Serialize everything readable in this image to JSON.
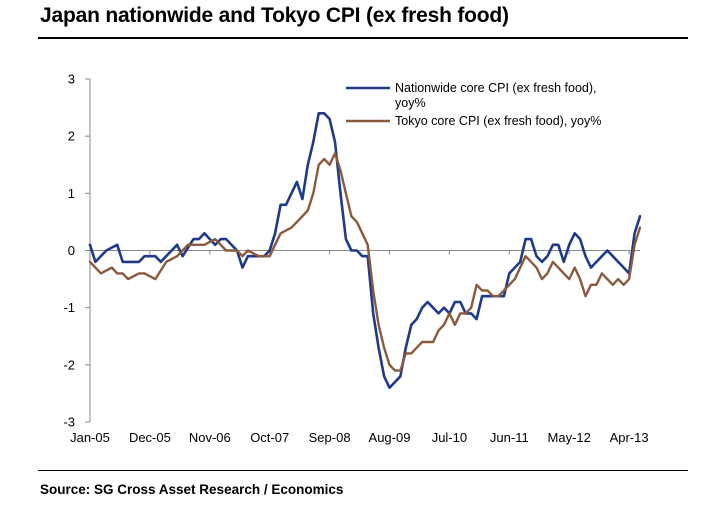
{
  "title": "Japan nationwide and Tokyo CPI (ex fresh food)",
  "source": "Source: SG Cross Asset Research / Economics",
  "colors": {
    "nationwide": "#1f3a8a",
    "tokyo": "#8b5a3c",
    "axis": "#888888"
  },
  "chart_data": {
    "type": "line",
    "title": "Japan nationwide and Tokyo CPI (ex fresh food)",
    "xlabel": "",
    "ylabel": "",
    "ylim": [
      -3,
      3
    ],
    "yticks": [
      "3",
      "2",
      "1",
      "0",
      "-1",
      "-2",
      "-3"
    ],
    "xtick_labels": [
      "Jan-05",
      "Dec-05",
      "Nov-06",
      "Oct-07",
      "Sep-08",
      "Aug-09",
      "Jul-10",
      "Jun-11",
      "May-12",
      "Apr-13"
    ],
    "xrange": [
      "Jan-05",
      "Jun-13"
    ],
    "grid": false,
    "legend_position": "top-right",
    "series": [
      {
        "name": "Nationwide core CPI (ex fresh food), yoy%",
        "name_lines": [
          "Nationwide core CPI (ex fresh food),",
          "yoy%"
        ],
        "color_key": "nationwide",
        "points": [
          [
            "Jan-05",
            0.1
          ],
          [
            "Feb-05",
            -0.2
          ],
          [
            "Apr-05",
            0.0
          ],
          [
            "Jun-05",
            0.1
          ],
          [
            "Jul-05",
            -0.2
          ],
          [
            "Oct-05",
            -0.2
          ],
          [
            "Nov-05",
            -0.1
          ],
          [
            "Dec-05",
            -0.1
          ],
          [
            "Jan-06",
            -0.1
          ],
          [
            "Feb-06",
            -0.2
          ],
          [
            "Mar-06",
            -0.1
          ],
          [
            "May-06",
            0.1
          ],
          [
            "Jun-06",
            -0.1
          ],
          [
            "Aug-06",
            0.2
          ],
          [
            "Sep-06",
            0.2
          ],
          [
            "Oct-06",
            0.3
          ],
          [
            "Nov-06",
            0.2
          ],
          [
            "Dec-06",
            0.1
          ],
          [
            "Jan-07",
            0.2
          ],
          [
            "Feb-07",
            0.2
          ],
          [
            "Apr-07",
            0.0
          ],
          [
            "May-07",
            -0.3
          ],
          [
            "Jun-07",
            -0.1
          ],
          [
            "Jul-07",
            -0.1
          ],
          [
            "Sep-07",
            -0.1
          ],
          [
            "Oct-07",
            0.0
          ],
          [
            "Nov-07",
            0.3
          ],
          [
            "Dec-07",
            0.8
          ],
          [
            "Jan-08",
            0.8
          ],
          [
            "Mar-08",
            1.2
          ],
          [
            "Apr-08",
            0.9
          ],
          [
            "May-08",
            1.5
          ],
          [
            "Jun-08",
            1.9
          ],
          [
            "Jul-08",
            2.4
          ],
          [
            "Aug-08",
            2.4
          ],
          [
            "Sep-08",
            2.3
          ],
          [
            "Oct-08",
            1.9
          ],
          [
            "Nov-08",
            1.0
          ],
          [
            "Dec-08",
            0.2
          ],
          [
            "Jan-09",
            0.0
          ],
          [
            "Feb-09",
            0.0
          ],
          [
            "Mar-09",
            -0.1
          ],
          [
            "Apr-09",
            -0.1
          ],
          [
            "May-09",
            -1.1
          ],
          [
            "Jun-09",
            -1.7
          ],
          [
            "Jul-09",
            -2.2
          ],
          [
            "Aug-09",
            -2.4
          ],
          [
            "Sep-09",
            -2.3
          ],
          [
            "Oct-09",
            -2.2
          ],
          [
            "Nov-09",
            -1.7
          ],
          [
            "Dec-09",
            -1.3
          ],
          [
            "Jan-10",
            -1.2
          ],
          [
            "Feb-10",
            -1.0
          ],
          [
            "Mar-10",
            -0.9
          ],
          [
            "Apr-10",
            -1.0
          ],
          [
            "May-10",
            -1.1
          ],
          [
            "Jun-10",
            -1.0
          ],
          [
            "Jul-10",
            -1.1
          ],
          [
            "Aug-10",
            -0.9
          ],
          [
            "Sep-10",
            -0.9
          ],
          [
            "Oct-10",
            -1.1
          ],
          [
            "Nov-10",
            -1.1
          ],
          [
            "Dec-10",
            -1.2
          ],
          [
            "Jan-11",
            -0.8
          ],
          [
            "Feb-11",
            -0.8
          ],
          [
            "Mar-11",
            -0.8
          ],
          [
            "Apr-11",
            -0.8
          ],
          [
            "May-11",
            -0.8
          ],
          [
            "Jun-11",
            -0.4
          ],
          [
            "Jul-11",
            -0.3
          ],
          [
            "Aug-11",
            -0.2
          ],
          [
            "Sep-11",
            0.2
          ],
          [
            "Oct-11",
            0.2
          ],
          [
            "Nov-11",
            -0.1
          ],
          [
            "Dec-11",
            -0.2
          ],
          [
            "Jan-12",
            -0.1
          ],
          [
            "Feb-12",
            0.1
          ],
          [
            "Mar-12",
            0.1
          ],
          [
            "Apr-12",
            -0.2
          ],
          [
            "May-12",
            0.1
          ],
          [
            "Jun-12",
            0.3
          ],
          [
            "Jul-12",
            0.2
          ],
          [
            "Aug-12",
            -0.1
          ],
          [
            "Sep-12",
            -0.3
          ],
          [
            "Oct-12",
            -0.2
          ],
          [
            "Nov-12",
            -0.1
          ],
          [
            "Dec-12",
            0.0
          ],
          [
            "Jan-13",
            -0.1
          ],
          [
            "Feb-13",
            -0.2
          ],
          [
            "Mar-13",
            -0.3
          ],
          [
            "Apr-13",
            -0.4
          ],
          [
            "May-13",
            0.3
          ],
          [
            "Jun-13",
            0.6
          ]
        ]
      },
      {
        "name": "Tokyo core CPI (ex fresh food), yoy%",
        "name_lines": [
          "Tokyo core CPI (ex fresh food), yoy%"
        ],
        "color_key": "tokyo",
        "points": [
          [
            "Jan-05",
            -0.2
          ],
          [
            "Feb-05",
            -0.3
          ],
          [
            "Mar-05",
            -0.4
          ],
          [
            "May-05",
            -0.3
          ],
          [
            "Jun-05",
            -0.4
          ],
          [
            "Jul-05",
            -0.4
          ],
          [
            "Aug-05",
            -0.5
          ],
          [
            "Oct-05",
            -0.4
          ],
          [
            "Nov-05",
            -0.4
          ],
          [
            "Jan-06",
            -0.5
          ],
          [
            "Mar-06",
            -0.2
          ],
          [
            "May-06",
            -0.1
          ],
          [
            "Jul-06",
            0.1
          ],
          [
            "Sep-06",
            0.1
          ],
          [
            "Oct-06",
            0.1
          ],
          [
            "Dec-06",
            0.2
          ],
          [
            "Feb-07",
            0.0
          ],
          [
            "Apr-07",
            0.0
          ],
          [
            "May-07",
            -0.1
          ],
          [
            "Jun-07",
            0.0
          ],
          [
            "Aug-07",
            -0.1
          ],
          [
            "Oct-07",
            -0.1
          ],
          [
            "Nov-07",
            0.1
          ],
          [
            "Dec-07",
            0.3
          ],
          [
            "Feb-08",
            0.4
          ],
          [
            "Apr-08",
            0.6
          ],
          [
            "May-08",
            0.7
          ],
          [
            "Jun-08",
            1.0
          ],
          [
            "Jul-08",
            1.5
          ],
          [
            "Aug-08",
            1.6
          ],
          [
            "Sep-08",
            1.5
          ],
          [
            "Oct-08",
            1.7
          ],
          [
            "Nov-08",
            1.4
          ],
          [
            "Dec-08",
            1.0
          ],
          [
            "Jan-09",
            0.6
          ],
          [
            "Feb-09",
            0.5
          ],
          [
            "Mar-09",
            0.3
          ],
          [
            "Apr-09",
            0.1
          ],
          [
            "May-09",
            -0.7
          ],
          [
            "Jun-09",
            -1.3
          ],
          [
            "Jul-09",
            -1.7
          ],
          [
            "Aug-09",
            -2.0
          ],
          [
            "Sep-09",
            -2.1
          ],
          [
            "Oct-09",
            -2.1
          ],
          [
            "Nov-09",
            -1.8
          ],
          [
            "Dec-09",
            -1.8
          ],
          [
            "Jan-10",
            -1.7
          ],
          [
            "Feb-10",
            -1.6
          ],
          [
            "Apr-10",
            -1.6
          ],
          [
            "May-10",
            -1.4
          ],
          [
            "Jun-10",
            -1.3
          ],
          [
            "Jul-10",
            -1.1
          ],
          [
            "Aug-10",
            -1.3
          ],
          [
            "Sep-10",
            -1.1
          ],
          [
            "Oct-10",
            -1.1
          ],
          [
            "Nov-10",
            -1.0
          ],
          [
            "Dec-10",
            -0.6
          ],
          [
            "Jan-11",
            -0.7
          ],
          [
            "Feb-11",
            -0.7
          ],
          [
            "Mar-11",
            -0.8
          ],
          [
            "Apr-11",
            -0.8
          ],
          [
            "May-11",
            -0.7
          ],
          [
            "Jun-11",
            -0.6
          ],
          [
            "Jul-11",
            -0.5
          ],
          [
            "Aug-11",
            -0.3
          ],
          [
            "Sep-11",
            -0.1
          ],
          [
            "Oct-11",
            -0.2
          ],
          [
            "Nov-11",
            -0.3
          ],
          [
            "Dec-11",
            -0.5
          ],
          [
            "Jan-12",
            -0.4
          ],
          [
            "Feb-12",
            -0.2
          ],
          [
            "Mar-12",
            -0.3
          ],
          [
            "Apr-12",
            -0.4
          ],
          [
            "May-12",
            -0.5
          ],
          [
            "Jun-12",
            -0.3
          ],
          [
            "Jul-12",
            -0.5
          ],
          [
            "Aug-12",
            -0.8
          ],
          [
            "Sep-12",
            -0.6
          ],
          [
            "Oct-12",
            -0.6
          ],
          [
            "Nov-12",
            -0.4
          ],
          [
            "Dec-12",
            -0.5
          ],
          [
            "Jan-13",
            -0.6
          ],
          [
            "Feb-13",
            -0.5
          ],
          [
            "Mar-13",
            -0.6
          ],
          [
            "Apr-13",
            -0.5
          ],
          [
            "May-13",
            0.1
          ],
          [
            "Jun-13",
            0.4
          ]
        ]
      }
    ]
  }
}
